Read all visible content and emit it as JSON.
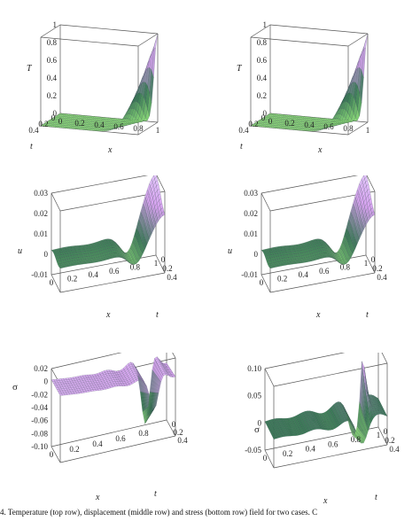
{
  "figure": {
    "caption": "4. Temperature (top row), displacement (middle row) and stress (bottom row) field for two cases. C"
  },
  "panels": [
    {
      "id": "p-tl",
      "surface": "temperature",
      "z_label": "T",
      "x_label": "x",
      "t_label": "t",
      "z_ticks": [
        "0",
        "0.2",
        "0.4",
        "0.6",
        "0.8",
        "1"
      ],
      "x_ticks": [
        "0",
        "0.2",
        "0.4",
        "0.6",
        "0.8",
        "1"
      ],
      "t_ticks": [
        "0.4",
        "0.2",
        "0"
      ]
    },
    {
      "id": "p-tr",
      "surface": "temperature",
      "z_label": "T",
      "x_label": "x",
      "t_label": "t",
      "z_ticks": [
        "0",
        "0.2",
        "0.4",
        "0.6",
        "0.8",
        "1"
      ],
      "x_ticks": [
        "0",
        "0.2",
        "0.4",
        "0.6",
        "0.8",
        "1"
      ],
      "t_ticks": [
        "0.4",
        "0.2",
        "0"
      ]
    },
    {
      "id": "p-ml",
      "surface": "displacement",
      "z_label": "u",
      "x_label": "x",
      "t_label": "t",
      "z_ticks": [
        "0.03",
        "0.02",
        "0.01",
        "0",
        "-0.01"
      ],
      "x_ticks": [
        "1",
        "0.8",
        "0.6",
        "0.4",
        "0.2",
        "0"
      ],
      "t_ticks": [
        "0",
        "0.2",
        "0.4"
      ]
    },
    {
      "id": "p-mr",
      "surface": "displacement",
      "z_label": "u",
      "x_label": "x",
      "t_label": "t",
      "z_ticks": [
        "0.03",
        "0.02",
        "0.01",
        "0",
        "-0.01"
      ],
      "x_ticks": [
        "1",
        "0.8",
        "0.6",
        "0.4",
        "0.2",
        "0"
      ],
      "t_ticks": [
        "0",
        "0.2",
        "0.4"
      ]
    },
    {
      "id": "p-bl",
      "surface": "stress-1",
      "z_label": "σ",
      "x_label": "x",
      "t_label": "t",
      "z_ticks": [
        "0.02",
        "0",
        "-0.02",
        "-0.04",
        "-0.06",
        "-0.08",
        "-0.10"
      ],
      "x_ticks": [
        "0.8",
        "0.6",
        "0.4",
        "0.2",
        "0"
      ],
      "t_ticks": [
        "0",
        "0.2",
        "0.4"
      ]
    },
    {
      "id": "p-br",
      "surface": "stress-2",
      "z_label": "σ",
      "x_label": "x",
      "t_label": "t",
      "z_ticks": [
        "0.10",
        "0.05",
        "0",
        "-0.05"
      ],
      "x_ticks": [
        "1",
        "0.8",
        "0.6",
        "0.4",
        "0.2",
        "0"
      ],
      "t_ticks": [
        "0",
        "0.2",
        "0.4"
      ]
    }
  ],
  "colors": {
    "low": "#8fe07a",
    "mid": "#3a7a56",
    "high": "#d7a2f0",
    "peak": "#e6c8ff",
    "wire": "#2b3b45",
    "box": "#555555"
  }
}
